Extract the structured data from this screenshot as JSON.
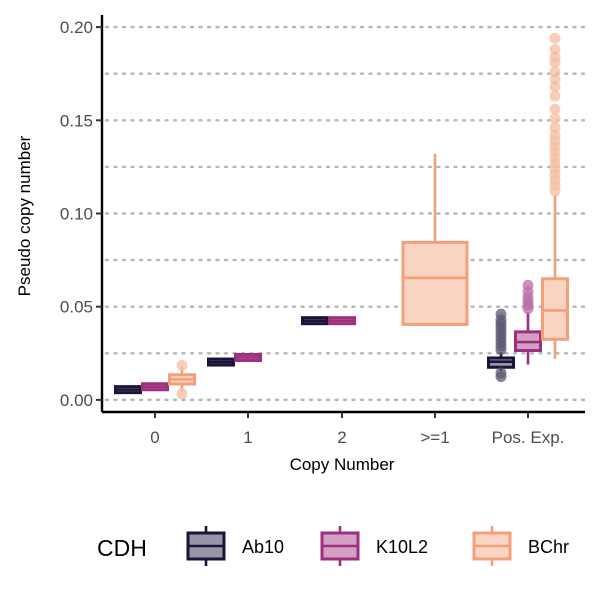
{
  "chart_data": {
    "type": "boxplot",
    "title": "",
    "xlabel": "Copy Number",
    "ylabel": "Pseudo copy number",
    "ylim": [
      -0.0065,
      0.2065
    ],
    "yticks": [
      0.0,
      0.05,
      0.1,
      0.15,
      0.2
    ],
    "ytick_labels": [
      "0.00",
      "0.05",
      "0.10",
      "0.15",
      "0.20"
    ],
    "categories": [
      "0",
      "1",
      "2",
      ">=1",
      "Pos. Exp."
    ],
    "grid": "horizontal dotted",
    "legend": {
      "title": "CDH",
      "position": "bottom",
      "entries": [
        "Ab10",
        "K10L2",
        "BChr"
      ]
    },
    "series": [
      {
        "name": "Ab10",
        "color": "#1b1339",
        "boxes": [
          {
            "category": "0",
            "min": 0.0045,
            "q1": 0.005,
            "median": 0.0055,
            "q3": 0.006,
            "max": 0.0068,
            "outliers": []
          },
          {
            "category": "1",
            "min": 0.018,
            "q1": 0.0193,
            "median": 0.0203,
            "q3": 0.0213,
            "max": 0.0225,
            "outliers": []
          },
          {
            "category": "2",
            "min": 0.0405,
            "q1": 0.0415,
            "median": 0.0425,
            "q3": 0.0435,
            "max": 0.0445,
            "outliers": []
          },
          {
            "category": "Pos. Exp.",
            "min": 0.0155,
            "q1": 0.0175,
            "median": 0.0205,
            "q3": 0.0225,
            "max": 0.0255,
            "outliers": [
              0.0125,
              0.0145,
              0.027,
              0.029,
              0.031,
              0.033,
              0.035,
              0.037,
              0.039,
              0.041,
              0.043,
              0.046
            ]
          }
        ]
      },
      {
        "name": "K10L2",
        "color": "#9e2f7f",
        "boxes": [
          {
            "category": "0",
            "min": 0.0055,
            "q1": 0.0063,
            "median": 0.007,
            "q3": 0.0078,
            "max": 0.0088,
            "outliers": []
          },
          {
            "category": "1",
            "min": 0.0215,
            "q1": 0.0222,
            "median": 0.0228,
            "q3": 0.0233,
            "max": 0.024,
            "outliers": []
          },
          {
            "category": "2",
            "min": 0.0415,
            "q1": 0.042,
            "median": 0.0425,
            "q3": 0.043,
            "max": 0.0435,
            "outliers": []
          },
          {
            "category": "Pos. Exp.",
            "min": 0.019,
            "q1": 0.0265,
            "median": 0.031,
            "q3": 0.0365,
            "max": 0.047,
            "outliers": [
              0.049,
              0.051,
              0.053,
              0.055,
              0.058,
              0.0615
            ]
          }
        ]
      },
      {
        "name": "BChr",
        "color": "#f1a07a",
        "boxes": [
          {
            "category": "0",
            "min": 0.0045,
            "q1": 0.0085,
            "median": 0.011,
            "q3": 0.0135,
            "max": 0.0175,
            "outliers": [
              0.0033,
              0.0185
            ]
          },
          {
            "category": ">=1",
            "min": 0.04,
            "q1": 0.0405,
            "median": 0.0655,
            "q3": 0.0845,
            "max": 0.132,
            "outliers": []
          },
          {
            "category": "Pos. Exp.",
            "min": 0.022,
            "q1": 0.0325,
            "median": 0.048,
            "q3": 0.065,
            "max": 0.11,
            "outliers": [
              0.112,
              0.115,
              0.118,
              0.121,
              0.124,
              0.127,
              0.13,
              0.133,
              0.136,
              0.139,
              0.142,
              0.146,
              0.151,
              0.156,
              0.163,
              0.168,
              0.172,
              0.176,
              0.181,
              0.184,
              0.188,
              0.194
            ]
          }
        ]
      }
    ]
  }
}
